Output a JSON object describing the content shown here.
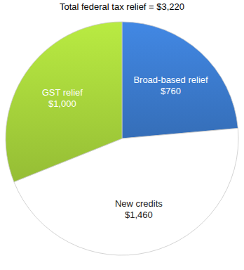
{
  "chart_data": {
    "type": "pie",
    "title": "Total federal tax relief = $3,220",
    "categories": [
      "Broad-based relief",
      "New credits",
      "GST relief"
    ],
    "values": [
      760,
      1460,
      1000
    ],
    "value_labels": [
      "$760",
      "$1,460",
      "$1,000"
    ],
    "colors": [
      "#3a78c9",
      "#ffffff",
      "#a3cf3a"
    ],
    "data_labels": true
  }
}
